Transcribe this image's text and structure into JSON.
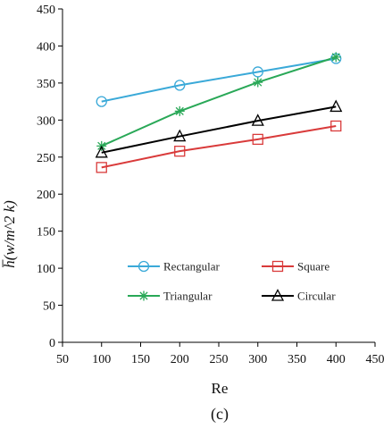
{
  "chart_data": {
    "type": "line",
    "xlabel": "Re",
    "ylabel": "h̅(w/m^2 k)",
    "caption": "(c)",
    "xlim": [
      50,
      450
    ],
    "ylim": [
      0,
      450
    ],
    "xticks": [
      50,
      100,
      150,
      200,
      250,
      300,
      350,
      400,
      450
    ],
    "yticks": [
      0,
      50,
      100,
      150,
      200,
      250,
      300,
      350,
      400,
      450
    ],
    "grid": false,
    "legend_position": "lower-center",
    "x": [
      100,
      200,
      300,
      400
    ],
    "series": [
      {
        "name": "Rectangular",
        "values": [
          325,
          347,
          365,
          383
        ],
        "color": "#3aa9d8",
        "marker": "circle"
      },
      {
        "name": "Square",
        "values": [
          236,
          258,
          274,
          292
        ],
        "color": "#d93a3a",
        "marker": "square"
      },
      {
        "name": "Triangular",
        "values": [
          265,
          312,
          351,
          385
        ],
        "color": "#29a857",
        "marker": "star"
      },
      {
        "name": "Circular",
        "values": [
          256,
          278,
          299,
          318
        ],
        "color": "#000000",
        "marker": "triangle"
      }
    ]
  }
}
